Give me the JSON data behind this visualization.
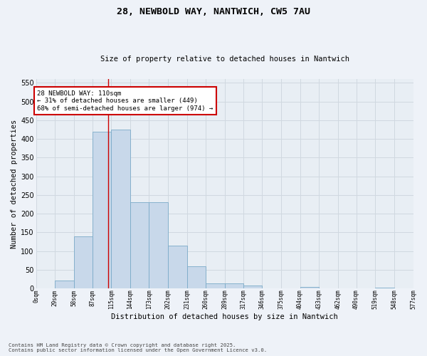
{
  "title1": "28, NEWBOLD WAY, NANTWICH, CW5 7AU",
  "title2": "Size of property relative to detached houses in Nantwich",
  "xlabel": "Distribution of detached houses by size in Nantwich",
  "ylabel": "Number of detached properties",
  "bin_edges": [
    0,
    29,
    58,
    87,
    115,
    144,
    173,
    202,
    231,
    260,
    289,
    317,
    346,
    375,
    404,
    433,
    462,
    490,
    519,
    548,
    577
  ],
  "bar_heights": [
    0,
    22,
    140,
    420,
    425,
    230,
    230,
    115,
    60,
    13,
    13,
    8,
    0,
    0,
    5,
    0,
    0,
    0,
    2,
    0
  ],
  "bar_color": "#c8d8ea",
  "bar_edge_color": "#7aaac8",
  "grid_color": "#d0d8e0",
  "background_color": "#e8eef4",
  "vline_x": 110,
  "vline_color": "#cc0000",
  "annotation_line1": "28 NEWBOLD WAY: 110sqm",
  "annotation_line2": "← 31% of detached houses are smaller (449)",
  "annotation_line3": "68% of semi-detached houses are larger (974) →",
  "annotation_box_color": "#cc0000",
  "ylim": [
    0,
    560
  ],
  "yticks": [
    0,
    50,
    100,
    150,
    200,
    250,
    300,
    350,
    400,
    450,
    500,
    550
  ],
  "footnote": "Contains HM Land Registry data © Crown copyright and database right 2025.\nContains public sector information licensed under the Open Government Licence v3.0.",
  "tick_labels": [
    "0sqm",
    "29sqm",
    "58sqm",
    "87sqm",
    "115sqm",
    "144sqm",
    "173sqm",
    "202sqm",
    "231sqm",
    "260sqm",
    "289sqm",
    "317sqm",
    "346sqm",
    "375sqm",
    "404sqm",
    "433sqm",
    "462sqm",
    "490sqm",
    "519sqm",
    "548sqm",
    "577sqm"
  ],
  "fig_width": 6.0,
  "fig_height": 5.0,
  "dpi": 100
}
